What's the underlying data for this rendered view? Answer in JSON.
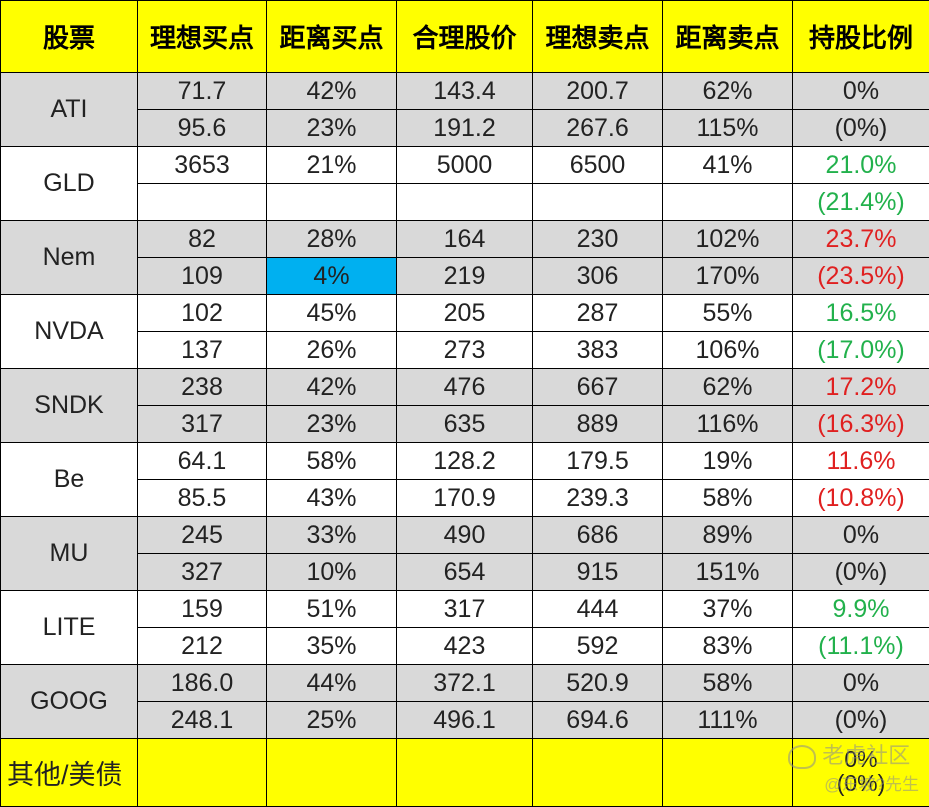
{
  "headers": [
    "股票",
    "理想买点",
    "距离买点",
    "合理股价",
    "理想卖点",
    "距离卖点",
    "持股比例"
  ],
  "rows": [
    {
      "ticker": "ATI",
      "shade": "gray",
      "lines": [
        {
          "buy": "71.7",
          "dist_buy": "42%",
          "fair": "143.4",
          "sell": "200.7",
          "dist_sell": "62%",
          "hold": "0%"
        },
        {
          "buy": "95.6",
          "dist_buy": "23%",
          "fair": "191.2",
          "sell": "267.6",
          "dist_sell": "115%",
          "hold": "(0%)"
        }
      ],
      "hold_color": "black"
    },
    {
      "ticker": "GLD",
      "shade": "white",
      "lines": [
        {
          "buy": "3653",
          "dist_buy": "21%",
          "fair": "5000",
          "sell": "6500",
          "dist_sell": "41%",
          "hold": "21.0%"
        },
        {
          "buy": "",
          "dist_buy": "",
          "fair": "",
          "sell": "",
          "dist_sell": "",
          "hold": "(21.4%)"
        }
      ],
      "hold_color": "green"
    },
    {
      "ticker": "Nem",
      "shade": "gray",
      "lines": [
        {
          "buy": "82",
          "dist_buy": "28%",
          "fair": "164",
          "sell": "230",
          "dist_sell": "102%",
          "hold": "23.7%"
        },
        {
          "buy": "109",
          "dist_buy": "4%",
          "fair": "219",
          "sell": "306",
          "dist_sell": "170%",
          "hold": "(23.5%)"
        }
      ],
      "hold_color": "red"
    },
    {
      "ticker": "NVDA",
      "shade": "white",
      "lines": [
        {
          "buy": "102",
          "dist_buy": "45%",
          "fair": "205",
          "sell": "287",
          "dist_sell": "55%",
          "hold": "16.5%"
        },
        {
          "buy": "137",
          "dist_buy": "26%",
          "fair": "273",
          "sell": "383",
          "dist_sell": "106%",
          "hold": "(17.0%)"
        }
      ],
      "hold_color": "green"
    },
    {
      "ticker": "SNDK",
      "shade": "gray",
      "lines": [
        {
          "buy": "238",
          "dist_buy": "42%",
          "fair": "476",
          "sell": "667",
          "dist_sell": "62%",
          "hold": "17.2%"
        },
        {
          "buy": "317",
          "dist_buy": "23%",
          "fair": "635",
          "sell": "889",
          "dist_sell": "116%",
          "hold": "(16.3%)"
        }
      ],
      "hold_color": "red"
    },
    {
      "ticker": "Be",
      "shade": "white",
      "lines": [
        {
          "buy": "64.1",
          "dist_buy": "58%",
          "fair": "128.2",
          "sell": "179.5",
          "dist_sell": "19%",
          "hold": "11.6%"
        },
        {
          "buy": "85.5",
          "dist_buy": "43%",
          "fair": "170.9",
          "sell": "239.3",
          "dist_sell": "58%",
          "hold": "(10.8%)"
        }
      ],
      "hold_color": "red"
    },
    {
      "ticker": "MU",
      "shade": "gray",
      "lines": [
        {
          "buy": "245",
          "dist_buy": "33%",
          "fair": "490",
          "sell": "686",
          "dist_sell": "89%",
          "hold": "0%"
        },
        {
          "buy": "327",
          "dist_buy": "10%",
          "fair": "654",
          "sell": "915",
          "dist_sell": "151%",
          "hold": "(0%)"
        }
      ],
      "hold_color": "black"
    },
    {
      "ticker": "LITE",
      "shade": "white",
      "lines": [
        {
          "buy": "159",
          "dist_buy": "51%",
          "fair": "317",
          "sell": "444",
          "dist_sell": "37%",
          "hold": "9.9%"
        },
        {
          "buy": "212",
          "dist_buy": "35%",
          "fair": "423",
          "sell": "592",
          "dist_sell": "83%",
          "hold": "(11.1%)"
        }
      ],
      "hold_color": "green"
    },
    {
      "ticker": "GOOG",
      "shade": "gray",
      "lines": [
        {
          "buy": "186.0",
          "dist_buy": "44%",
          "fair": "372.1",
          "sell": "520.9",
          "dist_sell": "58%",
          "hold": "0%"
        },
        {
          "buy": "248.1",
          "dist_buy": "25%",
          "fair": "496.1",
          "sell": "694.6",
          "dist_sell": "111%",
          "hold": "(0%)"
        }
      ],
      "hold_color": "black"
    }
  ],
  "highlight_cell": {
    "row": 2,
    "line": 1,
    "column": "dist_buy",
    "color": "#00b0f0"
  },
  "footer": {
    "label": "其他/美债",
    "hold_line1": "0%",
    "hold_line2": "(0%)"
  },
  "watermark": {
    "line1": "老虎社区",
    "line2": "@东坡?先生"
  },
  "colors": {
    "header_bg": "#ffff00",
    "gray_row": "#d9d9d9",
    "green": "#22b14c",
    "red": "#e02020",
    "highlight": "#00b0f0"
  }
}
